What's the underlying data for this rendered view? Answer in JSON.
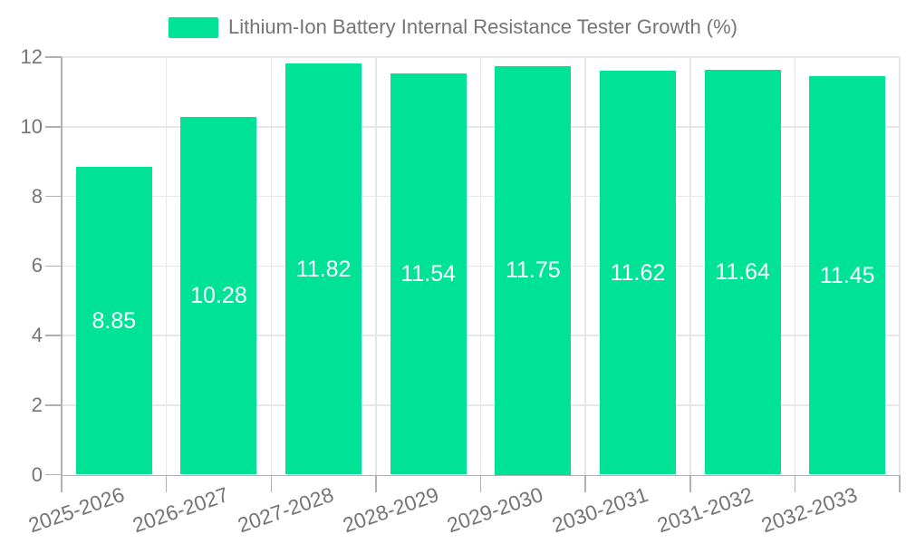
{
  "legend": {
    "label": "Lithium-Ion Battery Internal Resistance Tester Growth (%)"
  },
  "chart_data": {
    "type": "bar",
    "title": "Lithium-Ion Battery Internal Resistance Tester Growth (%)",
    "categories": [
      "2025-2026",
      "2026-2027",
      "2027-2028",
      "2028-2029",
      "2029-2030",
      "2030-2031",
      "2031-2032",
      "2032-2033"
    ],
    "values": [
      8.85,
      10.28,
      11.82,
      11.54,
      11.75,
      11.62,
      11.64,
      11.45
    ],
    "value_labels": [
      "8.85",
      "10.28",
      "11.82",
      "11.54",
      "11.75",
      "11.62",
      "11.64",
      "11.45"
    ],
    "xlabel": "",
    "ylabel": "",
    "ylim": [
      0,
      12
    ],
    "yticks": [
      0,
      2,
      4,
      6,
      8,
      10,
      12
    ],
    "legend_position": "top",
    "grid": true,
    "x_label_rotation_deg": -19,
    "colors": {
      "bar": "#00E396",
      "text": "#757575",
      "grid": "#e7e7e7",
      "axis": "#b1b1b1",
      "value_label": "#ffffff",
      "background": "#ffffff"
    }
  }
}
